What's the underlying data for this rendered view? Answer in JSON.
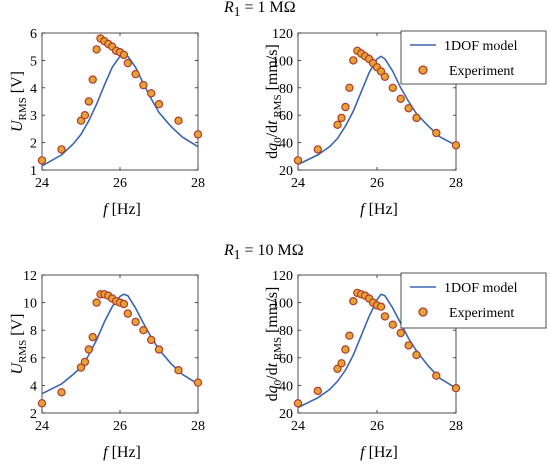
{
  "titles": {
    "top": {
      "sym": "R",
      "sub": "1",
      "rest": " = 1 MΩ"
    },
    "bottom": {
      "sym": "R",
      "sub": "1",
      "rest": " = 10 MΩ"
    }
  },
  "legend": {
    "model_label": "1DOF model",
    "experiment_label": "Experiment"
  },
  "colors": {
    "model_line": "#3a66b0",
    "marker_fill": "#e2a437",
    "marker_edge": "#b43a2a",
    "axis": "#262626"
  },
  "chart_data": [
    {
      "type": "line",
      "xlabel": {
        "sym": "f",
        "unit": " [Hz]"
      },
      "ylabel": {
        "sym": "U",
        "sub": "RMS",
        "unit": " [V]"
      },
      "xlim": [
        24,
        28
      ],
      "ylim": [
        1,
        6
      ],
      "xticks": [
        24,
        26,
        28
      ],
      "yticks": [
        1,
        2,
        3,
        4,
        5,
        6
      ],
      "legend": false,
      "series": [
        {
          "kind": "line",
          "x": [
            24,
            24.5,
            24.8,
            25,
            25.2,
            25.4,
            25.6,
            25.8,
            26,
            26.1,
            26.2,
            26.4,
            26.6,
            26.8,
            27,
            27.3,
            27.6,
            28
          ],
          "y": [
            1.15,
            1.55,
            1.95,
            2.3,
            2.8,
            3.4,
            4.1,
            4.75,
            5.15,
            5.22,
            5.15,
            4.75,
            4.15,
            3.6,
            3.1,
            2.6,
            2.2,
            1.85
          ]
        },
        {
          "kind": "scatter",
          "x": [
            24,
            24.5,
            25,
            25.1,
            25.2,
            25.3,
            25.4,
            25.5,
            25.6,
            25.7,
            25.8,
            25.9,
            26,
            26.1,
            26.2,
            26.4,
            26.6,
            26.8,
            27,
            27.5,
            28
          ],
          "y": [
            1.35,
            1.75,
            2.8,
            3.0,
            3.5,
            4.3,
            5.4,
            5.8,
            5.7,
            5.6,
            5.5,
            5.35,
            5.3,
            5.2,
            4.9,
            4.5,
            4.1,
            3.8,
            3.4,
            2.8,
            2.3
          ]
        }
      ]
    },
    {
      "type": "line",
      "xlabel": {
        "sym": "f",
        "unit": " [Hz]"
      },
      "ylabel": {
        "pre": "d",
        "sym": "q",
        "sub0": "0",
        "mid": "/d",
        "sym2": "t",
        "sub": "RMS",
        "unit": " [mm/s]"
      },
      "xlim": [
        24,
        28
      ],
      "ylim": [
        20,
        120
      ],
      "xticks": [
        24,
        26,
        28
      ],
      "yticks": [
        20,
        40,
        60,
        80,
        100,
        120
      ],
      "legend": true,
      "series": [
        {
          "kind": "line",
          "x": [
            24,
            24.5,
            24.8,
            25,
            25.2,
            25.4,
            25.6,
            25.8,
            26,
            26.1,
            26.2,
            26.4,
            26.6,
            26.8,
            27,
            27.3,
            27.6,
            28
          ],
          "y": [
            24,
            31,
            37,
            43,
            52,
            63,
            77,
            91,
            101,
            103,
            101,
            92,
            80,
            70,
            61,
            52,
            44,
            38
          ]
        },
        {
          "kind": "scatter",
          "x": [
            24,
            24.5,
            25,
            25.1,
            25.2,
            25.3,
            25.4,
            25.5,
            25.6,
            25.7,
            25.8,
            25.9,
            26,
            26.1,
            26.2,
            26.4,
            26.6,
            26.8,
            27,
            27.5,
            28
          ],
          "y": [
            27,
            35,
            53,
            58,
            66,
            80,
            100,
            107,
            105,
            103,
            101,
            98,
            95,
            92,
            88,
            80,
            72,
            65,
            58,
            47,
            38
          ]
        }
      ]
    },
    {
      "type": "line",
      "xlabel": {
        "sym": "f",
        "unit": " [Hz]"
      },
      "ylabel": {
        "sym": "U",
        "sub": "RMS",
        "unit": " [V]"
      },
      "xlim": [
        24,
        28
      ],
      "ylim": [
        2,
        12
      ],
      "xticks": [
        24,
        26,
        28
      ],
      "yticks": [
        2,
        4,
        6,
        8,
        10,
        12
      ],
      "legend": false,
      "series": [
        {
          "kind": "line",
          "x": [
            24,
            24.5,
            24.8,
            25,
            25.2,
            25.4,
            25.6,
            25.8,
            26,
            26.1,
            26.2,
            26.4,
            26.6,
            26.8,
            27,
            27.3,
            27.6,
            28
          ],
          "y": [
            3.4,
            4.1,
            4.8,
            5.3,
            6.2,
            7.3,
            8.6,
            9.7,
            10.45,
            10.6,
            10.5,
            9.6,
            8.5,
            7.5,
            6.6,
            5.6,
            4.8,
            4.1
          ]
        },
        {
          "kind": "scatter",
          "x": [
            24,
            24.5,
            25,
            25.1,
            25.2,
            25.3,
            25.4,
            25.5,
            25.6,
            25.7,
            25.8,
            25.9,
            26,
            26.1,
            26.2,
            26.4,
            26.6,
            26.8,
            27,
            27.5,
            28
          ],
          "y": [
            2.7,
            3.5,
            5.3,
            5.7,
            6.6,
            7.5,
            10.0,
            10.6,
            10.6,
            10.5,
            10.3,
            10.1,
            10.0,
            9.9,
            9.2,
            8.6,
            8.0,
            7.3,
            6.6,
            5.1,
            4.2
          ]
        }
      ]
    },
    {
      "type": "line",
      "xlabel": {
        "sym": "f",
        "unit": " [Hz]"
      },
      "ylabel": {
        "pre": "d",
        "sym": "q",
        "sub0": "0",
        "mid": "/d",
        "sym2": "t",
        "sub": "RMS",
        "unit": " [mm/s]"
      },
      "xlim": [
        24,
        28
      ],
      "ylim": [
        20,
        120
      ],
      "xticks": [
        24,
        26,
        28
      ],
      "yticks": [
        20,
        40,
        60,
        80,
        100,
        120
      ],
      "legend": true,
      "series": [
        {
          "kind": "line",
          "x": [
            24,
            24.5,
            24.8,
            25,
            25.2,
            25.4,
            25.6,
            25.8,
            26,
            26.1,
            26.2,
            26.4,
            26.6,
            26.8,
            27,
            27.3,
            27.6,
            28
          ],
          "y": [
            24,
            31,
            37,
            43,
            51,
            62,
            76,
            90,
            102,
            106,
            105,
            96,
            85,
            74,
            65,
            54,
            45,
            38
          ]
        },
        {
          "kind": "scatter",
          "x": [
            24,
            24.5,
            25,
            25.1,
            25.2,
            25.3,
            25.4,
            25.5,
            25.6,
            25.7,
            25.8,
            25.9,
            26,
            26.1,
            26.2,
            26.4,
            26.6,
            26.8,
            27,
            27.5,
            28
          ],
          "y": [
            27,
            36,
            52,
            56,
            66,
            76,
            101,
            107,
            106,
            105,
            103,
            100,
            98,
            97,
            90,
            84,
            78,
            69,
            62,
            47,
            38
          ]
        }
      ]
    }
  ]
}
